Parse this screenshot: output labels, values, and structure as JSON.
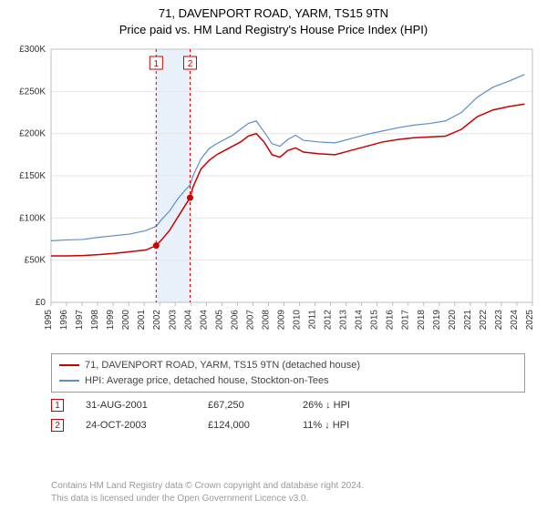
{
  "title_line1": "71, DAVENPORT ROAD, YARM, TS15 9TN",
  "title_line2": "Price paid vs. HM Land Registry's House Price Index (HPI)",
  "chart": {
    "type": "line",
    "background_color": "#ffffff",
    "plot_border_color": "#bfbfbf",
    "grid_color": "#e6e6e6",
    "highlight_band_fill": "#e8f0fa",
    "highlight_band_x_start": 2001.66,
    "highlight_band_x_end": 2003.81,
    "xlim": [
      1995,
      2025.5
    ],
    "ylim": [
      0,
      300000
    ],
    "ytick_step": 50000,
    "ytick_labels": [
      "£0",
      "£50K",
      "£100K",
      "£150K",
      "£200K",
      "£250K",
      "£300K"
    ],
    "xtick_years": [
      1995,
      1996,
      1997,
      1998,
      1999,
      2000,
      2001,
      2002,
      2003,
      2004,
      2004,
      2005,
      2006,
      2007,
      2008,
      2009,
      2010,
      2011,
      2012,
      2013,
      2014,
      2015,
      2016,
      2017,
      2018,
      2019,
      2020,
      2021,
      2022,
      2023,
      2024,
      2025
    ],
    "xtick_label_fontsize": 10,
    "ytick_label_fontsize": 10,
    "xtick_label_color": "#333333",
    "ytick_label_color": "#333333",
    "series": [
      {
        "name": "price_paid",
        "label": "71, DAVENPORT ROAD, YARM, TS15 9TN (detached house)",
        "color": "#cc0000",
        "line_width": 1.5,
        "points": [
          [
            1995.0,
            55000
          ],
          [
            1996.0,
            55000
          ],
          [
            1997.0,
            55500
          ],
          [
            1998.0,
            56500
          ],
          [
            1999.0,
            58000
          ],
          [
            2000.0,
            60000
          ],
          [
            2001.0,
            62000
          ],
          [
            2001.66,
            67250
          ],
          [
            2002.0,
            74000
          ],
          [
            2002.5,
            85000
          ],
          [
            2003.0,
            100000
          ],
          [
            2003.5,
            115000
          ],
          [
            2003.81,
            124000
          ],
          [
            2004.0,
            137000
          ],
          [
            2004.5,
            158000
          ],
          [
            2005.0,
            168000
          ],
          [
            2005.5,
            175000
          ],
          [
            2006.0,
            180000
          ],
          [
            2006.5,
            185000
          ],
          [
            2007.0,
            190000
          ],
          [
            2007.5,
            197000
          ],
          [
            2008.0,
            200000
          ],
          [
            2008.5,
            190000
          ],
          [
            2009.0,
            175000
          ],
          [
            2009.5,
            172000
          ],
          [
            2010.0,
            180000
          ],
          [
            2010.5,
            183000
          ],
          [
            2011.0,
            178000
          ],
          [
            2012.0,
            176000
          ],
          [
            2013.0,
            175000
          ],
          [
            2014.0,
            180000
          ],
          [
            2015.0,
            185000
          ],
          [
            2016.0,
            190000
          ],
          [
            2017.0,
            193000
          ],
          [
            2018.0,
            195000
          ],
          [
            2019.0,
            196000
          ],
          [
            2020.0,
            197000
          ],
          [
            2021.0,
            205000
          ],
          [
            2022.0,
            220000
          ],
          [
            2023.0,
            228000
          ],
          [
            2024.0,
            232000
          ],
          [
            2025.0,
            235000
          ]
        ]
      },
      {
        "name": "hpi",
        "label": "HPI: Average price, detached house, Stockton-on-Tees",
        "color": "#5b8ecb",
        "line_width": 1.2,
        "points": [
          [
            1995.0,
            73000
          ],
          [
            1996.0,
            74000
          ],
          [
            1997.0,
            74500
          ],
          [
            1998.0,
            77000
          ],
          [
            1999.0,
            79000
          ],
          [
            2000.0,
            81000
          ],
          [
            2001.0,
            85000
          ],
          [
            2001.66,
            90000
          ],
          [
            2002.0,
            98000
          ],
          [
            2002.5,
            108000
          ],
          [
            2003.0,
            122000
          ],
          [
            2003.5,
            133000
          ],
          [
            2003.81,
            139000
          ],
          [
            2004.0,
            150000
          ],
          [
            2004.5,
            170000
          ],
          [
            2005.0,
            182000
          ],
          [
            2005.5,
            188000
          ],
          [
            2006.0,
            193000
          ],
          [
            2006.5,
            198000
          ],
          [
            2007.0,
            205000
          ],
          [
            2007.5,
            212000
          ],
          [
            2008.0,
            215000
          ],
          [
            2008.5,
            202000
          ],
          [
            2009.0,
            188000
          ],
          [
            2009.5,
            185000
          ],
          [
            2010.0,
            193000
          ],
          [
            2010.5,
            198000
          ],
          [
            2011.0,
            192000
          ],
          [
            2012.0,
            190000
          ],
          [
            2013.0,
            189000
          ],
          [
            2014.0,
            194000
          ],
          [
            2015.0,
            199000
          ],
          [
            2016.0,
            203000
          ],
          [
            2017.0,
            207000
          ],
          [
            2018.0,
            210000
          ],
          [
            2019.0,
            212000
          ],
          [
            2020.0,
            215000
          ],
          [
            2021.0,
            225000
          ],
          [
            2022.0,
            243000
          ],
          [
            2023.0,
            255000
          ],
          [
            2024.0,
            262000
          ],
          [
            2025.0,
            270000
          ]
        ]
      }
    ],
    "sale_markers": [
      {
        "n": "1",
        "x": 2001.66,
        "y": 67250,
        "box_color": "#cc0000",
        "dot_color": "#cc0000"
      },
      {
        "n": "2",
        "x": 2003.81,
        "y": 124000,
        "box_color": "#cc0000",
        "dot_color": "#cc0000"
      }
    ]
  },
  "legend": {
    "rows": [
      {
        "color": "#cc0000",
        "label": "71, DAVENPORT ROAD, YARM, TS15 9TN (detached house)"
      },
      {
        "color": "#5b8ecb",
        "label": "HPI: Average price, detached house, Stockton-on-Tees"
      }
    ]
  },
  "sales": [
    {
      "n": "1",
      "date": "31-AUG-2001",
      "price": "£67,250",
      "hpi": "26% ↓ HPI"
    },
    {
      "n": "2",
      "date": "24-OCT-2003",
      "price": "£124,000",
      "hpi": "11% ↓ HPI"
    }
  ],
  "footer_line1": "Contains HM Land Registry data © Crown copyright and database right 2024.",
  "footer_line2": "This data is licensed under the Open Government Licence v3.0."
}
